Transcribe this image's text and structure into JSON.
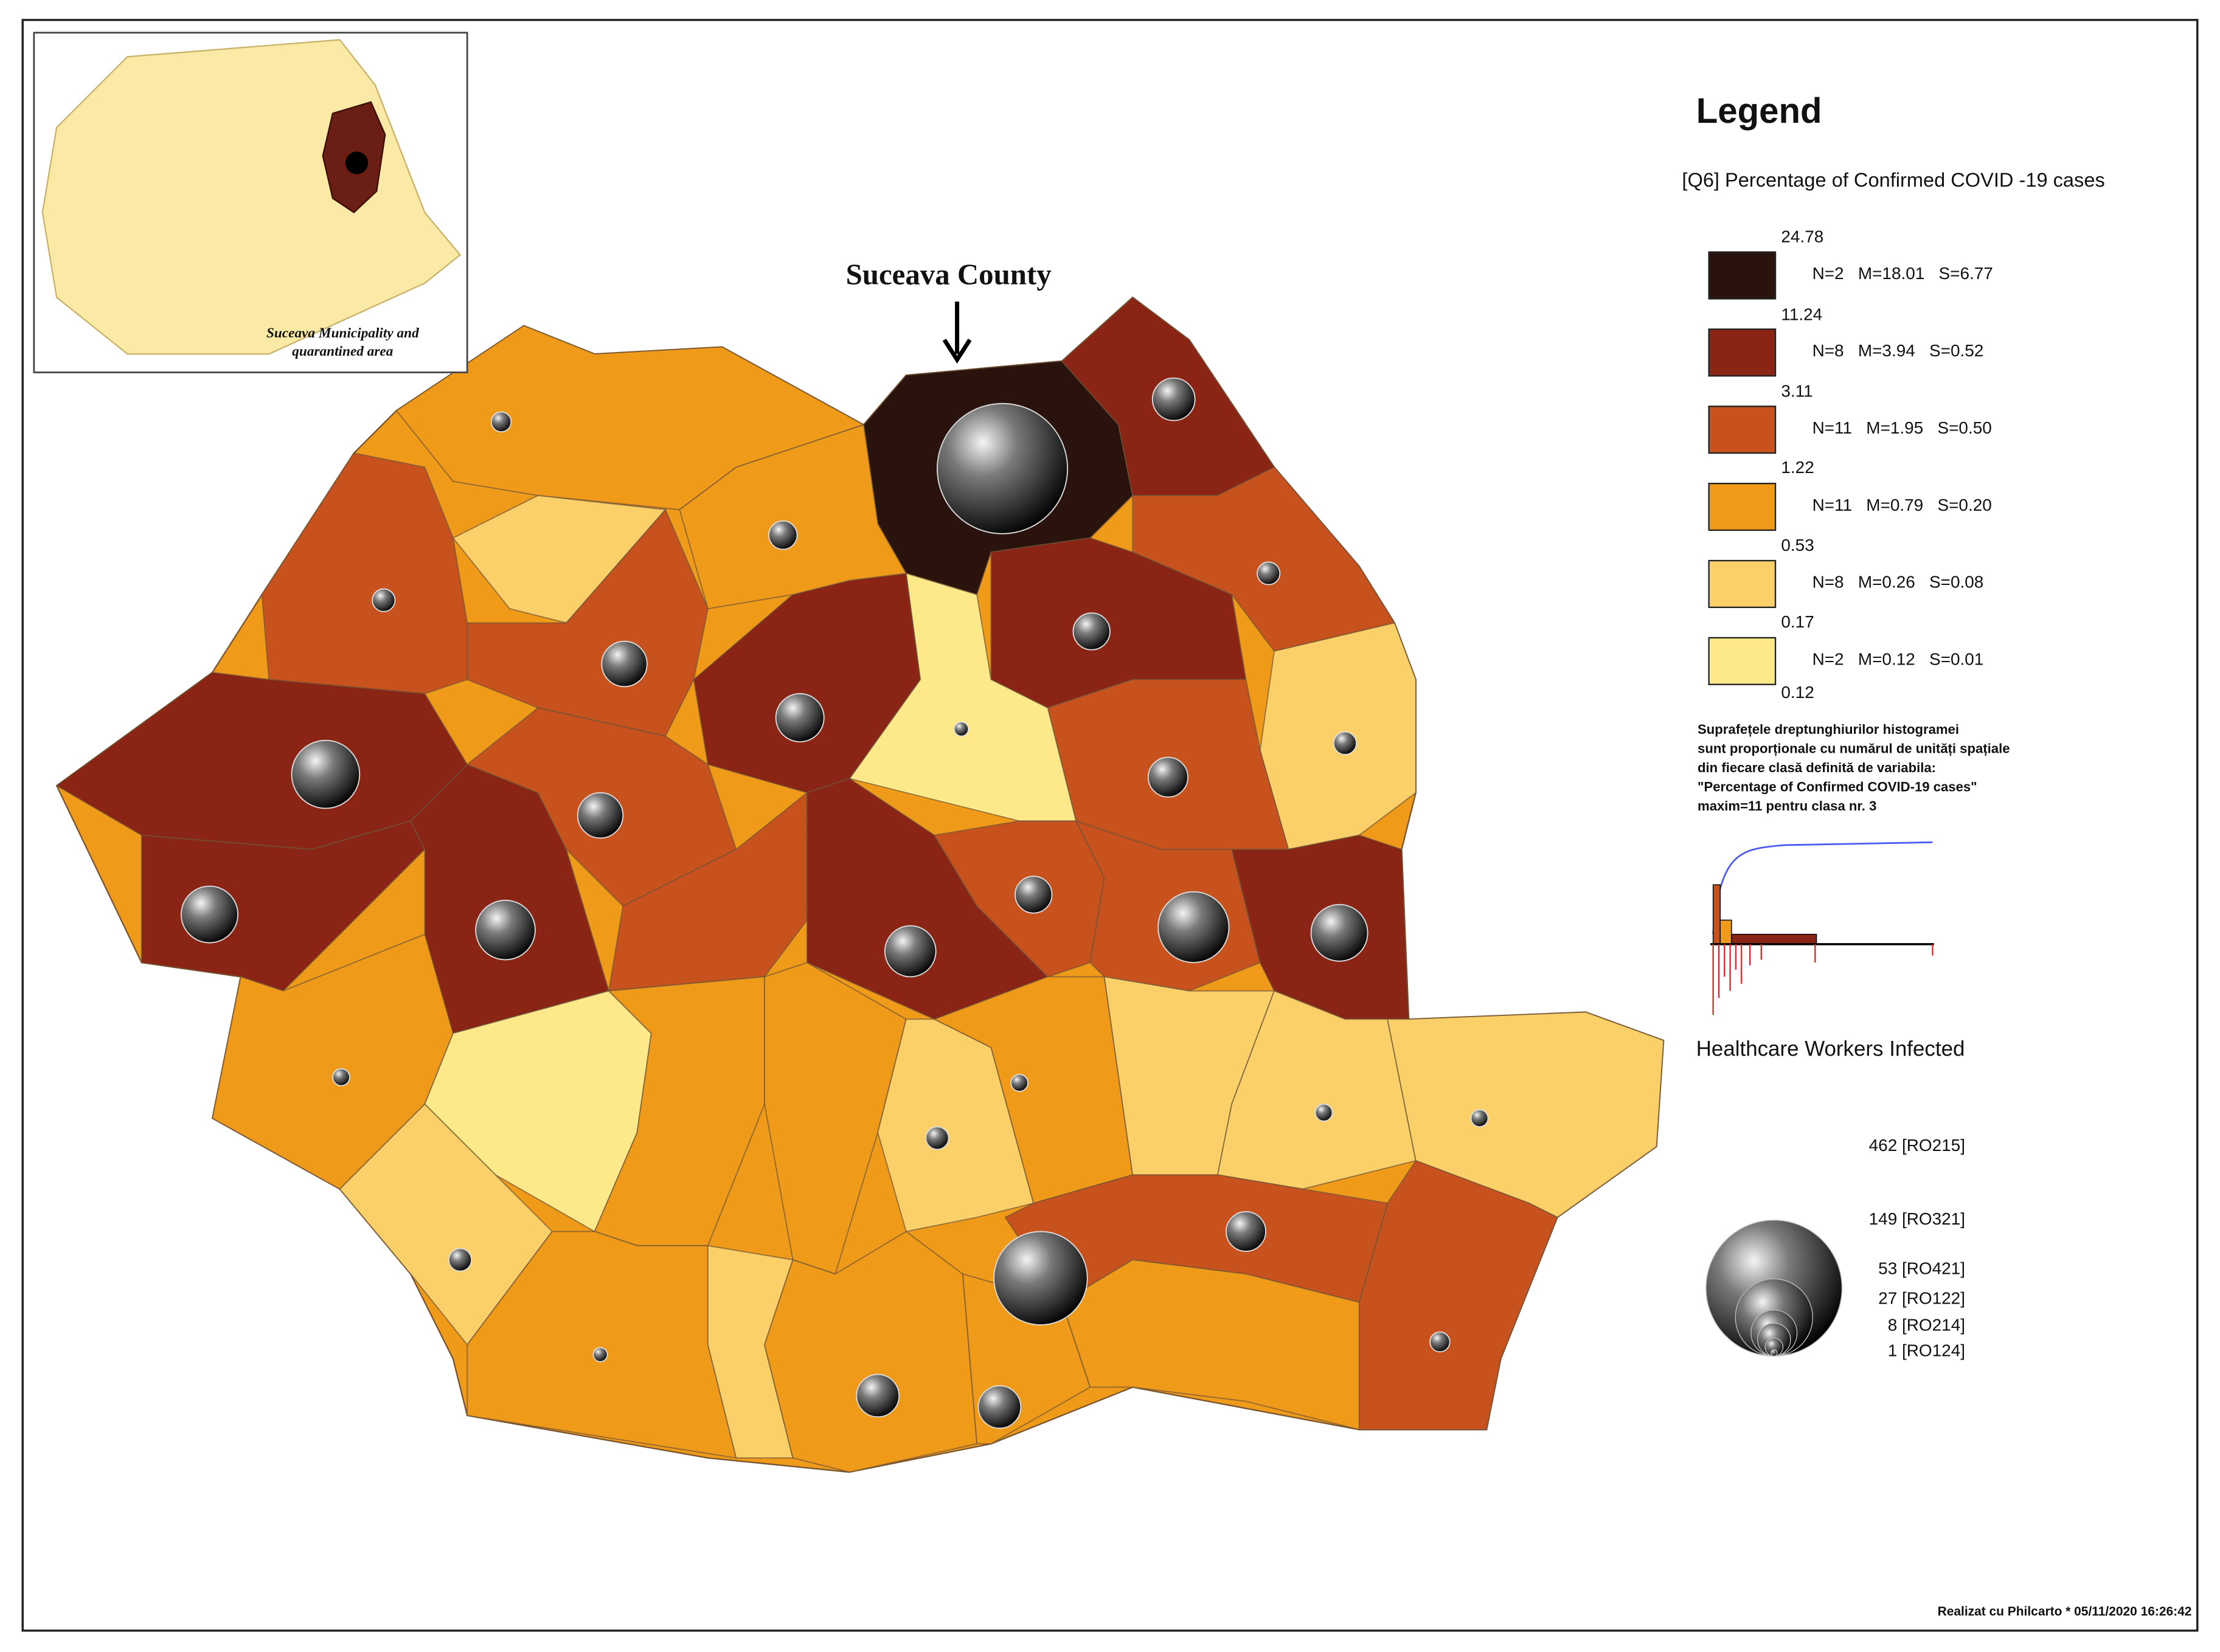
{
  "title_annotation": "Suceava County",
  "inset": {
    "caption_line1": "Suceava Municipality and",
    "caption_line2": "quarantined area"
  },
  "legend": {
    "title": "Legend",
    "variable": "[Q6] Percentage of Confirmed COVID -19 cases",
    "breaks": [
      24.78,
      11.24,
      3.11,
      1.22,
      0.53,
      0.17,
      0.12
    ],
    "classes": [
      {
        "color": "#2b130d",
        "stats": "N=2   M=18.01   S=6.77"
      },
      {
        "color": "#8a2516",
        "stats": "N=8   M=3.94   S=0.52"
      },
      {
        "color": "#c8521d",
        "stats": "N=11   M=1.95   S=0.50"
      },
      {
        "color": "#f09a1a",
        "stats": "N=11   M=0.79   S=0.20"
      },
      {
        "color": "#fbd068",
        "stats": "N=8   M=0.26   S=0.08"
      },
      {
        "color": "#fde98a",
        "stats": "N=2   M=0.12   S=0.01"
      }
    ],
    "note": [
      "Suprafețele dreptunghiurilor histogramei",
      "sunt proporționale cu numărul de unități spațiale",
      "din fiecare clasă definită de variabila:",
      "\"Percentage of Confirmed COVID-19 cases\"",
      "maxim=11 pentru clasa nr. 3"
    ],
    "bubbles_title": "Healthcare Workers Infected",
    "bubbles": [
      {
        "value": 462,
        "label": "462 [RO215]"
      },
      {
        "value": 149,
        "label": "149 [RO321]"
      },
      {
        "value": 53,
        "label": "53 [RO421]"
      },
      {
        "value": 27,
        "label": "27 [RO122]"
      },
      {
        "value": 8,
        "label": "8 [RO214]"
      },
      {
        "value": 1,
        "label": "1 [RO124]"
      }
    ]
  },
  "footer": "Realizat cu Philcarto * 05/11/2020  16:26:42"
}
